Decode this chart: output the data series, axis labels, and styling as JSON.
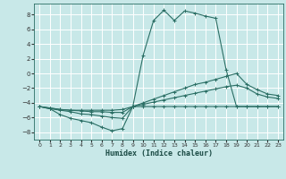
{
  "xlabel": "Humidex (Indice chaleur)",
  "xlim": [
    -0.5,
    23.5
  ],
  "ylim": [
    -9,
    9.5
  ],
  "xticks": [
    0,
    1,
    2,
    3,
    4,
    5,
    6,
    7,
    8,
    9,
    10,
    11,
    12,
    13,
    14,
    15,
    16,
    17,
    18,
    19,
    20,
    21,
    22,
    23
  ],
  "yticks": [
    -8,
    -6,
    -4,
    -2,
    0,
    2,
    4,
    6,
    8
  ],
  "bg_color": "#c8e8e8",
  "grid_color": "#ffffff",
  "line_color": "#2a6e64",
  "lines": [
    {
      "x": [
        0,
        1,
        2,
        3,
        4,
        5,
        6,
        7,
        8,
        9,
        10,
        11,
        12,
        13,
        14,
        15,
        16,
        17,
        18,
        19,
        20,
        21,
        22,
        23
      ],
      "y": [
        -4.5,
        -4.8,
        -5.6,
        -6.1,
        -6.4,
        -6.7,
        -7.3,
        -7.8,
        -7.5,
        -4.5,
        -4.5,
        -4.5,
        -4.5,
        -4.5,
        -4.5,
        -4.5,
        -4.5,
        -4.5,
        -4.5,
        -4.5,
        -4.5,
        -4.5,
        -4.5,
        -4.5
      ]
    },
    {
      "x": [
        0,
        1,
        2,
        3,
        4,
        5,
        6,
        7,
        8,
        9,
        10,
        11,
        12,
        13,
        14,
        15,
        16,
        17,
        18,
        19,
        20,
        21,
        22,
        23
      ],
      "y": [
        -4.5,
        -4.8,
        -5.0,
        -5.2,
        -5.5,
        -5.6,
        -5.8,
        -6.0,
        -6.1,
        -4.5,
        2.5,
        7.2,
        8.6,
        7.2,
        8.5,
        8.2,
        7.8,
        7.5,
        0.5,
        -4.5,
        -4.5,
        -4.5,
        -4.5,
        -4.5
      ]
    },
    {
      "x": [
        0,
        1,
        2,
        3,
        4,
        5,
        6,
        7,
        8,
        9,
        10,
        11,
        12,
        13,
        14,
        15,
        16,
        17,
        18,
        19,
        20,
        21,
        22,
        23
      ],
      "y": [
        -4.5,
        -4.7,
        -4.9,
        -5.0,
        -5.0,
        -5.0,
        -5.0,
        -5.0,
        -4.9,
        -4.5,
        -4.0,
        -3.5,
        -3.0,
        -2.5,
        -2.0,
        -1.5,
        -1.2,
        -0.8,
        -0.4,
        0.0,
        -1.5,
        -2.2,
        -2.8,
        -3.0
      ]
    },
    {
      "x": [
        0,
        1,
        2,
        3,
        4,
        5,
        6,
        7,
        8,
        9,
        10,
        11,
        12,
        13,
        14,
        15,
        16,
        17,
        18,
        19,
        20,
        21,
        22,
        23
      ],
      "y": [
        -4.5,
        -4.7,
        -4.9,
        -5.0,
        -5.1,
        -5.2,
        -5.2,
        -5.3,
        -5.3,
        -4.5,
        -4.2,
        -3.9,
        -3.6,
        -3.3,
        -3.0,
        -2.7,
        -2.4,
        -2.1,
        -1.8,
        -1.6,
        -2.0,
        -2.8,
        -3.2,
        -3.4
      ]
    }
  ]
}
